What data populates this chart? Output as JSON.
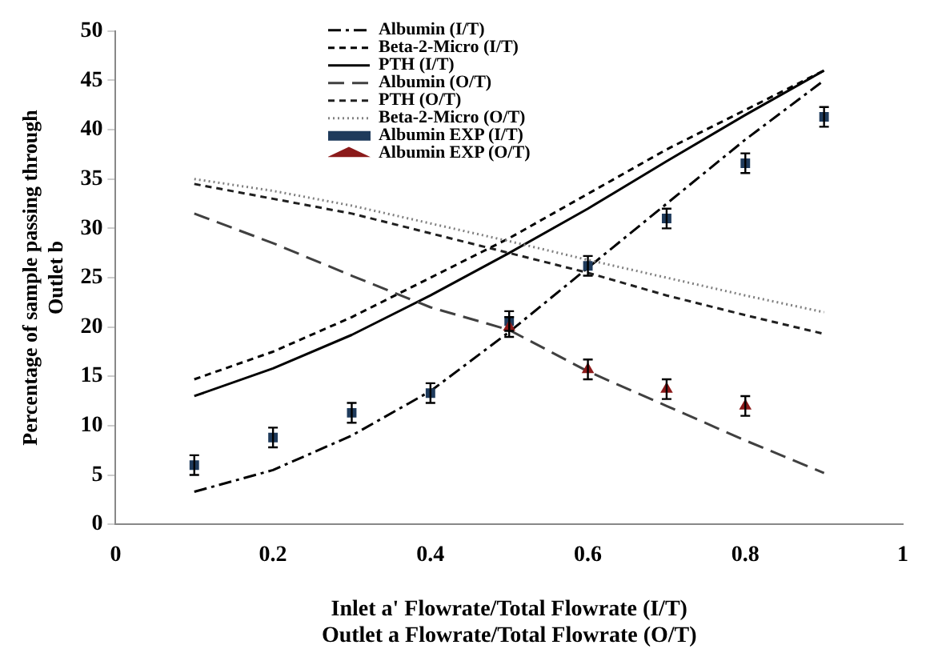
{
  "chart_data": {
    "type": "line",
    "xlabel": "Inlet a' Flowrate/Total Flowrate (I/T)\nOutlet a Flowrate/Total Flowrate (O/T)",
    "ylabel": "Percentage of sample passing through\nOutlet b",
    "x": [
      0.1,
      0.2,
      0.3,
      0.4,
      0.5,
      0.6,
      0.7,
      0.8,
      0.9
    ],
    "xlim": [
      0,
      1
    ],
    "xticks": [
      0,
      0.2,
      0.4,
      0.6,
      0.8,
      1
    ],
    "ylim": [
      0,
      50
    ],
    "yticks": [
      0,
      5,
      10,
      15,
      20,
      25,
      30,
      35,
      40,
      45,
      50
    ],
    "grid": false,
    "legend": "top",
    "marker": "none",
    "series": [
      {
        "name": "Albumin (I/T)",
        "color": "#000000",
        "line_style": "dashdot",
        "values": [
          3.3,
          5.5,
          9,
          13.5,
          19.5,
          26,
          32.5,
          39,
          45
        ]
      },
      {
        "name": "Beta-2-Micro (I/T)",
        "color": "#000000",
        "line_style": "dashed",
        "values": [
          14.7,
          17.5,
          21,
          25,
          29,
          33.5,
          38,
          42,
          46
        ]
      },
      {
        "name": "PTH (I/T)",
        "color": "#000000",
        "line_style": "solid",
        "values": [
          13,
          15.8,
          19.2,
          23.2,
          27.5,
          32,
          36.8,
          41.5,
          46
        ]
      },
      {
        "name": "Albumin (O/T)",
        "color": "#404040",
        "line_style": "longdash",
        "values": [
          31.5,
          28.5,
          25.2,
          22,
          19.7,
          15.5,
          12,
          8.5,
          5.2
        ]
      },
      {
        "name": "PTH (O/T)",
        "color": "#202020",
        "line_style": "dashed",
        "values": [
          34.5,
          33,
          31.5,
          29.5,
          27.5,
          25.5,
          23.2,
          21.2,
          19.3
        ]
      },
      {
        "name": "Beta-2-Micro (O/T)",
        "color": "#808080",
        "line_style": "dotted",
        "values": [
          35,
          33.8,
          32.3,
          30.5,
          28.7,
          26.8,
          25,
          23.2,
          21.5
        ]
      },
      {
        "name": "Albumin EXP (I/T)",
        "type": "scatter",
        "marker": "square",
        "color": "#1f3b5c",
        "values": [
          6,
          8.8,
          11.3,
          13.3,
          20.6,
          26.2,
          31,
          36.6,
          41.3
        ],
        "errors": [
          1,
          1,
          1,
          1,
          1,
          1,
          1,
          1,
          1
        ]
      },
      {
        "name": "Albumin EXP (O/T)",
        "type": "scatter",
        "marker": "triangle",
        "color": "#8b1a1a",
        "x": [
          0.5,
          0.6,
          0.7,
          0.8
        ],
        "values": [
          20,
          15.7,
          13.7,
          12
        ],
        "errors": [
          1,
          1,
          1,
          1
        ]
      }
    ]
  }
}
